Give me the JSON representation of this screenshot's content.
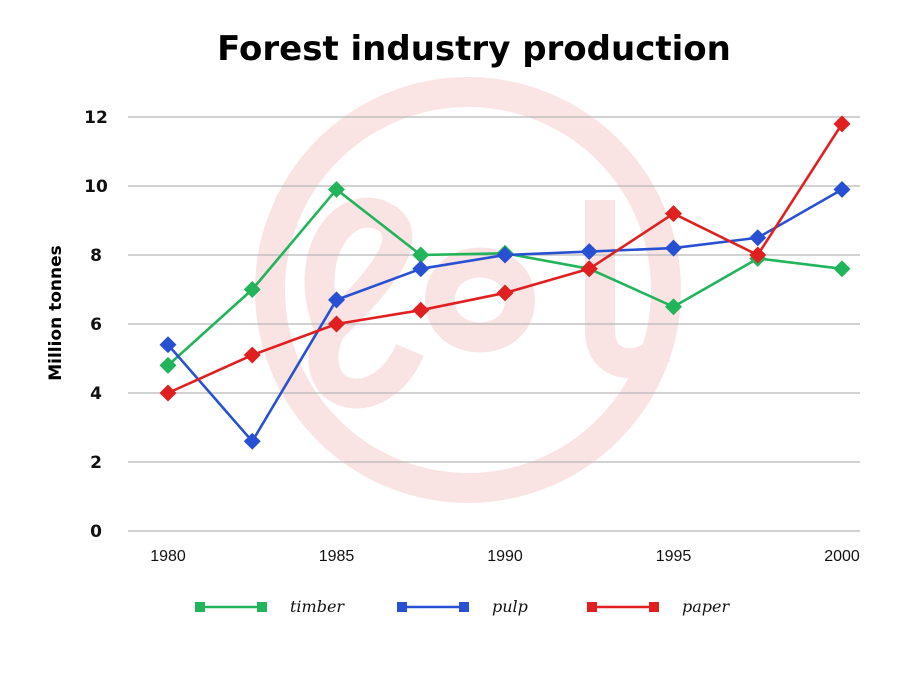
{
  "chart_data": {
    "type": "line",
    "title": "Forest industry production",
    "xlabel": "",
    "ylabel": "Million tonnes",
    "xlim": [
      1980,
      2000
    ],
    "ylim": [
      0,
      12
    ],
    "x_ticks": [
      "1980",
      "1985",
      "1990",
      "1995",
      "2000"
    ],
    "y_ticks": [
      "0",
      "2",
      "4",
      "6",
      "8",
      "10",
      "12"
    ],
    "grid": true,
    "legend_position": "bottom",
    "series": [
      {
        "name": "timber",
        "color": "#22b45a",
        "points": [
          [
            1980,
            4.8
          ],
          [
            1982.5,
            7.0
          ],
          [
            1985,
            9.9
          ],
          [
            1987.5,
            8.0
          ],
          [
            1990,
            8.05
          ],
          [
            1992.5,
            7.6
          ],
          [
            1995,
            6.5
          ],
          [
            1997.5,
            7.9
          ],
          [
            2000,
            7.6
          ]
        ]
      },
      {
        "name": "pulp",
        "color": "#2850d2",
        "points": [
          [
            1980,
            5.4
          ],
          [
            1982.5,
            2.6
          ],
          [
            1985,
            6.7
          ],
          [
            1987.5,
            7.6
          ],
          [
            1990,
            8.0
          ],
          [
            1992.5,
            8.1
          ],
          [
            1995,
            8.2
          ],
          [
            1997.5,
            8.5
          ],
          [
            2000,
            9.9
          ]
        ]
      },
      {
        "name": "paper",
        "color": "#e02020",
        "points": [
          [
            1980,
            4.0
          ],
          [
            1982.5,
            5.1
          ],
          [
            1985,
            6.0
          ],
          [
            1987.5,
            6.4
          ],
          [
            1990,
            6.9
          ],
          [
            1992.5,
            7.6
          ],
          [
            1995,
            9.2
          ],
          [
            1997.5,
            8.0
          ],
          [
            2000,
            11.8
          ]
        ]
      }
    ]
  }
}
